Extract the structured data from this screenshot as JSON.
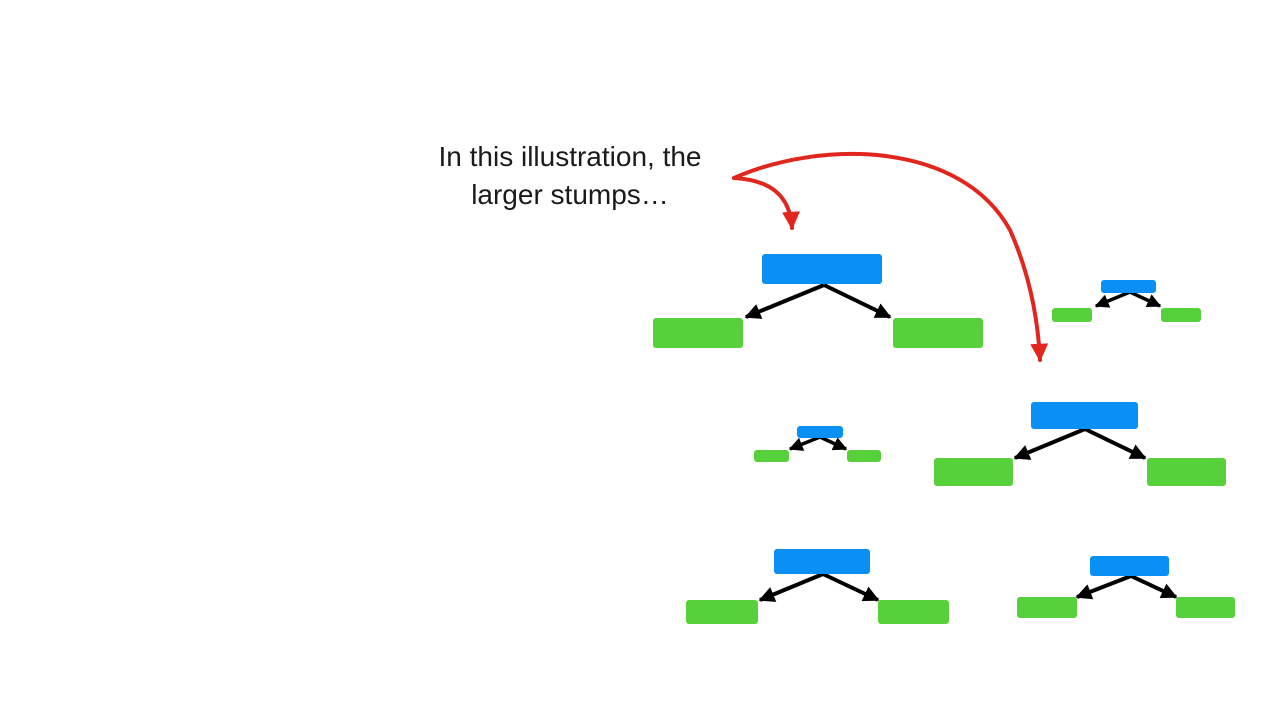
{
  "caption": {
    "line1": "In this illustration, the",
    "line2": "larger stumps…"
  },
  "colors": {
    "root": "#0a8ff5",
    "leaf": "#57d13b",
    "edge": "#000000",
    "callout_arrow": "#e0261d",
    "text": "#1a1a1a"
  },
  "stumps": [
    {
      "id": "large-top-left",
      "relative_size": "large",
      "highlighted": true
    },
    {
      "id": "tiny-top-right",
      "relative_size": "tiny",
      "highlighted": false
    },
    {
      "id": "tiny-middle-left",
      "relative_size": "tiny",
      "highlighted": false
    },
    {
      "id": "large-middle-right",
      "relative_size": "large",
      "highlighted": true
    },
    {
      "id": "medium-bottom-left",
      "relative_size": "medium",
      "highlighted": false
    },
    {
      "id": "medium-bottom-right",
      "relative_size": "medium",
      "highlighted": false
    }
  ]
}
